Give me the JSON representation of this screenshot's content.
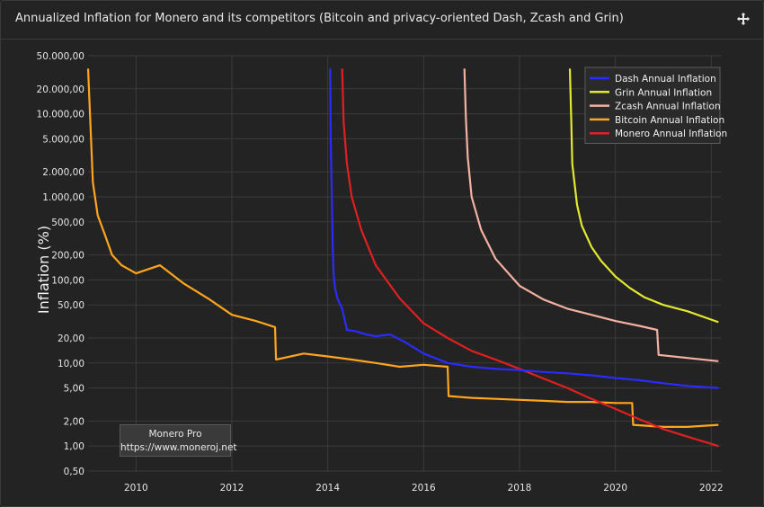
{
  "window": {
    "title": "Annualized Inflation for Monero and its competitors (Bitcoin and privacy-oriented Dash, Zcash and Grin)"
  },
  "watermark": {
    "line1": "Monero Pro",
    "line2": "https://www.moneroj.net"
  },
  "chart_data": {
    "type": "line",
    "title": "Annualized Inflation for Monero and its competitors (Bitcoin and privacy-oriented Dash, Zcash and Grin)",
    "xlabel": "",
    "ylabel": "Inflation (%)",
    "yscale": "log",
    "xlim": [
      2009.0,
      2022.2
    ],
    "ylim": [
      0.5,
      50000
    ],
    "x_ticks": [
      "2010",
      "2012",
      "2014",
      "2016",
      "2018",
      "2020",
      "2022"
    ],
    "y_ticks": [
      "50.000,00",
      "20.000,00",
      "10.000,00",
      "5.000,00",
      "2.000,00",
      "1.000,00",
      "500,00",
      "200,00",
      "100,00",
      "50,00",
      "20,00",
      "10,00",
      "5,00",
      "2,00",
      "1,00",
      "0,50"
    ],
    "y_tick_values": [
      50000,
      20000,
      10000,
      5000,
      2000,
      1000,
      500,
      200,
      100,
      50,
      20,
      10,
      5,
      2,
      1,
      0.5
    ],
    "grid": true,
    "legend_position": "top-right",
    "series": [
      {
        "name": "Dash Annual Inflation",
        "color": "#2b2bff",
        "x": [
          2014.05,
          2014.06,
          2014.08,
          2014.1,
          2014.12,
          2014.15,
          2014.2,
          2014.3,
          2014.4,
          2014.6,
          2014.8,
          2015.0,
          2015.3,
          2015.6,
          2016.0,
          2016.5,
          2017.0,
          2017.5,
          2018.0,
          2018.5,
          2019.0,
          2019.5,
          2020.0,
          2020.5,
          2021.0,
          2021.5,
          2022.15
        ],
        "values": [
          35000,
          5000,
          1500,
          300,
          120,
          80,
          60,
          45,
          25,
          24,
          22,
          21,
          22,
          18,
          13,
          10,
          9,
          8.5,
          8.2,
          7.8,
          7.5,
          7.1,
          6.6,
          6.2,
          5.7,
          5.3,
          5.0
        ]
      },
      {
        "name": "Grin Annual Inflation",
        "color": "#e2e830",
        "x": [
          2019.05,
          2019.08,
          2019.1,
          2019.2,
          2019.3,
          2019.5,
          2019.7,
          2020.0,
          2020.3,
          2020.6,
          2021.0,
          2021.5,
          2022.15
        ],
        "values": [
          35000,
          8000,
          2500,
          800,
          450,
          250,
          170,
          110,
          80,
          62,
          50,
          42,
          31
        ]
      },
      {
        "name": "Zcash Annual Inflation",
        "color": "#f4b0a0",
        "x": [
          2016.85,
          2016.88,
          2016.92,
          2017.0,
          2017.2,
          2017.5,
          2018.0,
          2018.5,
          2019.0,
          2019.5,
          2020.0,
          2020.5,
          2020.87,
          2020.9,
          2021.5,
          2022.15
        ],
        "values": [
          35000,
          9000,
          3000,
          1000,
          400,
          180,
          85,
          58,
          45,
          38,
          32,
          28,
          25,
          12.5,
          11.5,
          10.5
        ]
      },
      {
        "name": "Bitcoin Annual Inflation",
        "color": "#ffa51f",
        "x": [
          2009.0,
          2009.1,
          2009.2,
          2009.35,
          2009.5,
          2009.7,
          2010.0,
          2010.5,
          2011.0,
          2011.5,
          2012.0,
          2012.5,
          2012.9,
          2012.92,
          2013.5,
          2014.0,
          2014.5,
          2015.0,
          2015.5,
          2016.0,
          2016.5,
          2016.52,
          2017.0,
          2017.5,
          2018.0,
          2018.5,
          2019.0,
          2019.5,
          2020.0,
          2020.35,
          2020.37,
          2021.0,
          2021.5,
          2022.15
        ],
        "values": [
          35000,
          1500,
          600,
          350,
          200,
          150,
          120,
          150,
          90,
          60,
          38,
          32,
          27,
          11,
          13,
          12,
          11,
          10,
          9,
          9.5,
          9,
          4,
          3.8,
          3.7,
          3.6,
          3.5,
          3.4,
          3.4,
          3.3,
          3.3,
          1.8,
          1.7,
          1.7,
          1.8
        ]
      },
      {
        "name": "Monero Annual Inflation",
        "color": "#e02020",
        "x": [
          2014.3,
          2014.33,
          2014.4,
          2014.5,
          2014.7,
          2015.0,
          2015.5,
          2016.0,
          2016.5,
          2017.0,
          2017.5,
          2018.0,
          2018.5,
          2019.0,
          2019.5,
          2020.0,
          2020.5,
          2021.0,
          2021.5,
          2022.15
        ],
        "values": [
          35000,
          8000,
          2500,
          1000,
          400,
          150,
          60,
          30,
          20,
          14,
          11,
          8.5,
          6.5,
          5.0,
          3.7,
          2.8,
          2.1,
          1.6,
          1.3,
          1.0
        ]
      }
    ]
  }
}
